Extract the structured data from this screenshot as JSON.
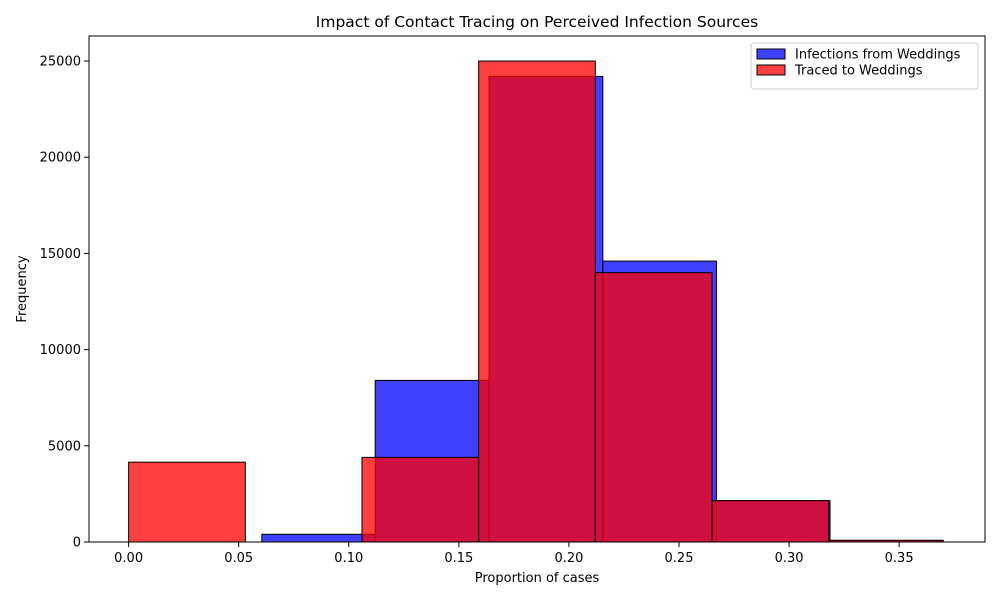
{
  "chart_data": {
    "type": "histogram",
    "title": "Impact of Contact Tracing on Perceived Infection Sources",
    "xlabel": "Proportion of cases",
    "ylabel": "Frequency",
    "xlim": [
      -0.018,
      0.389
    ],
    "ylim": [
      0,
      26300
    ],
    "xticks": [
      0.0,
      0.05,
      0.1,
      0.15,
      0.2,
      0.25,
      0.3,
      0.35
    ],
    "xtick_labels": [
      "0.00",
      "0.05",
      "0.10",
      "0.15",
      "0.20",
      "0.25",
      "0.30",
      "0.35"
    ],
    "yticks": [
      0,
      5000,
      10000,
      15000,
      20000,
      25000
    ],
    "ytick_labels": [
      "0",
      "5000",
      "10000",
      "15000",
      "20000",
      "25000"
    ],
    "grid": false,
    "legend_position": "top-right",
    "series": [
      {
        "name": "Infections from Weddings",
        "color": "#0000ff",
        "alpha": 0.75,
        "bins": [
          {
            "x0": 0.0605,
            "x1": 0.112,
            "value": 400
          },
          {
            "x0": 0.112,
            "x1": 0.1637,
            "value": 8400
          },
          {
            "x0": 0.1637,
            "x1": 0.2154,
            "value": 24200
          },
          {
            "x0": 0.2154,
            "x1": 0.267,
            "value": 14600
          },
          {
            "x0": 0.267,
            "x1": 0.3186,
            "value": 2150
          },
          {
            "x0": 0.3186,
            "x1": 0.37,
            "value": 80
          }
        ]
      },
      {
        "name": "Traced to Weddings",
        "color": "#ff0000",
        "alpha": 0.75,
        "bins": [
          {
            "x0": 0.0,
            "x1": 0.053,
            "value": 4150
          },
          {
            "x0": 0.053,
            "x1": 0.106,
            "value": 0
          },
          {
            "x0": 0.106,
            "x1": 0.159,
            "value": 4400
          },
          {
            "x0": 0.159,
            "x1": 0.212,
            "value": 25000
          },
          {
            "x0": 0.212,
            "x1": 0.265,
            "value": 14000
          },
          {
            "x0": 0.265,
            "x1": 0.318,
            "value": 2150
          },
          {
            "x0": 0.318,
            "x1": 0.37,
            "value": 90
          }
        ]
      }
    ]
  }
}
